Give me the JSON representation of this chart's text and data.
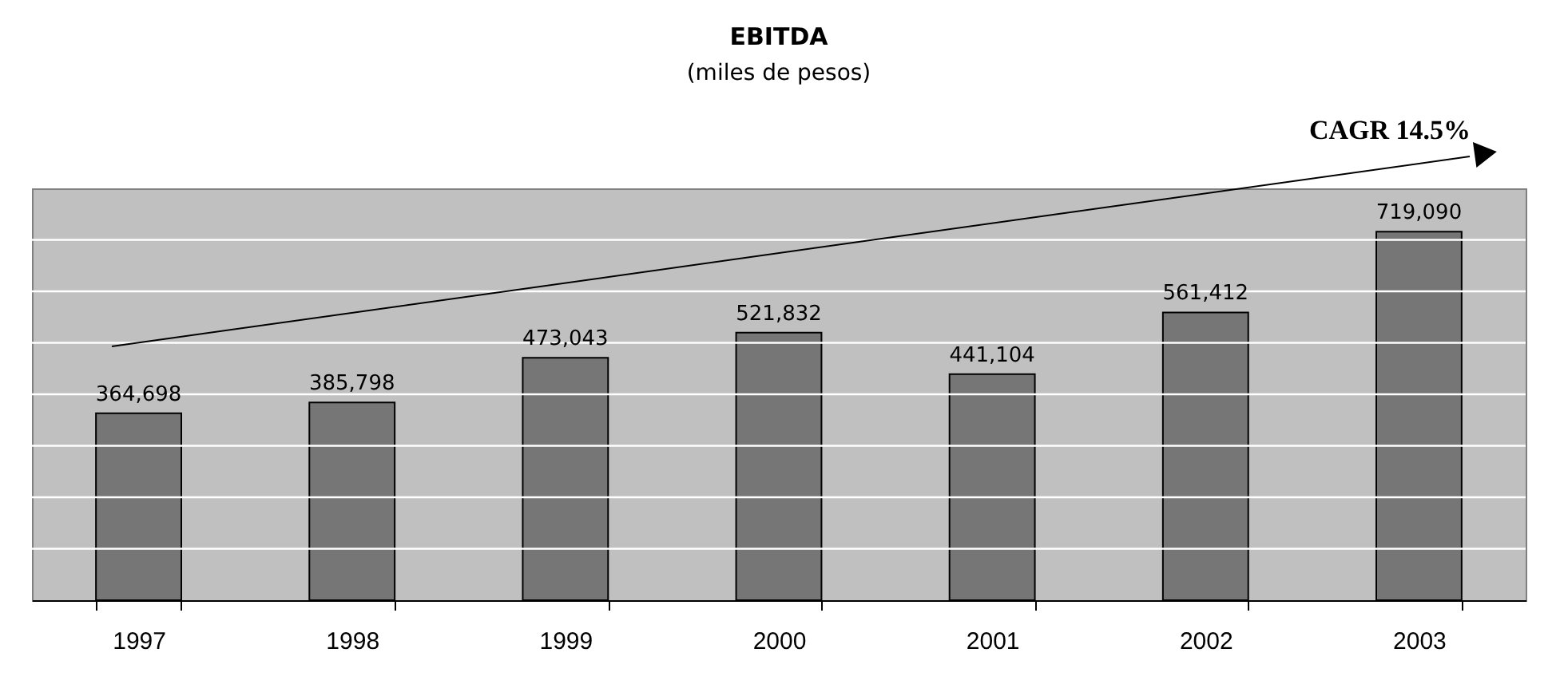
{
  "chart_data": {
    "type": "bar",
    "title": "EBITDA",
    "subtitle": "(miles de pesos)",
    "categories": [
      "1997",
      "1998",
      "1999",
      "2000",
      "2001",
      "2002",
      "2003"
    ],
    "values": [
      364698,
      385798,
      473043,
      521832,
      441104,
      561412,
      719090
    ],
    "value_labels": [
      "364,698",
      "385,798",
      "473,043",
      "521,832",
      "441,104",
      "561,412",
      "719,090"
    ],
    "color": "#767676",
    "tick_labels": "x",
    "grid": "y",
    "annotations": [
      "CAGR 14.5%"
    ]
  }
}
